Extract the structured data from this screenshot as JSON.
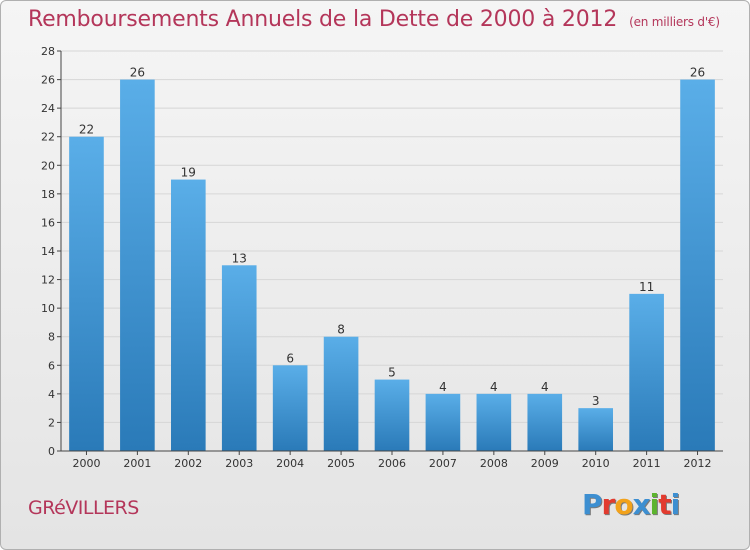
{
  "title": "Remboursements Annuels de la Dette de 2000 à 2012",
  "subtitle": "(en milliers d'€)",
  "commune": "GRéVILLERS",
  "logo": {
    "letters": [
      "P",
      "r",
      "o",
      "x",
      "i",
      "t",
      "i"
    ],
    "colors": [
      "#3d8fd1",
      "#e23b2f",
      "#f2a21b",
      "#3d8fd1",
      "#5cb42e",
      "#e23b2f",
      "#3d8fd1"
    ]
  },
  "chart_data": {
    "type": "bar",
    "categories": [
      "2000",
      "2001",
      "2002",
      "2003",
      "2004",
      "2005",
      "2006",
      "2007",
      "2008",
      "2009",
      "2010",
      "2011",
      "2012"
    ],
    "values": [
      22,
      26,
      19,
      13,
      6,
      8,
      5,
      4,
      4,
      4,
      3,
      11,
      26
    ],
    "ylim": [
      0,
      28
    ],
    "yticks": [
      0,
      2,
      4,
      6,
      8,
      10,
      12,
      14,
      16,
      18,
      20,
      22,
      24,
      26,
      28
    ],
    "grid": true,
    "colors": {
      "bar_light": "#5aaee8",
      "bar_dark": "#2a7ab8",
      "grid": "#d6d6d6",
      "axis": "#444444"
    }
  }
}
